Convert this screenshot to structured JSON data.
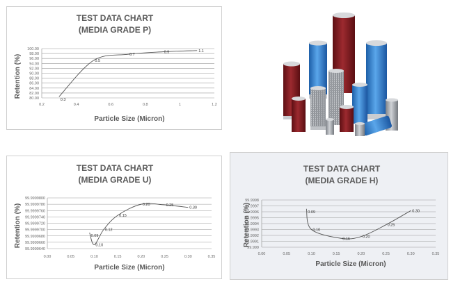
{
  "charts": {
    "p": {
      "title_line1": "TEST DATA CHART",
      "title_line2": "(MEDIA GRADE P)",
      "xlabel": "Particle Size (Micron)",
      "ylabel": "Retention (%)",
      "xticks": [
        "0.2",
        "0.4",
        "0.6",
        "0.8",
        "1",
        "1.2"
      ],
      "yticks": [
        "100.00",
        "98.00",
        "96.00",
        "94.00",
        "92.00",
        "90.00",
        "88.00",
        "86.00",
        "84.00",
        "82.00",
        "80.00"
      ]
    },
    "u": {
      "title_line1": "TEST DATA CHART",
      "title_line2": "(MEDIA GRADE U)",
      "xlabel": "Particle Size (Micron)",
      "ylabel": "Retention (%)",
      "xticks": [
        "0.00",
        "0.05",
        "0.10",
        "0.15",
        "0.20",
        "0.25",
        "0.30",
        "0.35"
      ],
      "yticks": [
        "99.9999800",
        "99.9999780",
        "99.9999760",
        "99.9999740",
        "99.9999720",
        "99.9999700",
        "99.9999680",
        "99.9999660",
        "99.9999640"
      ]
    },
    "h": {
      "title_line1": "TEST DATA CHART",
      "title_line2": "(MEDIA GRADE H)",
      "xlabel": "Particle Size (Micron)",
      "ylabel": "Retention (%)",
      "xticks": [
        "0.00",
        "0.05",
        "0.10",
        "0.15",
        "0.20",
        "0.25",
        "0.30",
        "0.35"
      ],
      "yticks": [
        "99.9998",
        "99.9997",
        "99.9996",
        "99.9995",
        "99.9994",
        "99.9993",
        "99.9992",
        "99.9991",
        "99.999"
      ]
    }
  },
  "chart_data": [
    {
      "type": "line",
      "title": "TEST DATA CHART (MEDIA GRADE P)",
      "xlabel": "Particle Size (Micron)",
      "ylabel": "Retention (%)",
      "xlim": [
        0.2,
        1.2
      ],
      "ylim": [
        80,
        100
      ],
      "grid": true,
      "x": [
        0.3,
        0.5,
        0.7,
        0.9,
        1.1
      ],
      "y": [
        80.5,
        95.2,
        97.7,
        98.7,
        99.2
      ],
      "point_labels": [
        "0.3",
        "0.5",
        "0.7",
        "0.9",
        "1.1"
      ]
    },
    {
      "type": "line",
      "title": "TEST DATA CHART (MEDIA GRADE U)",
      "xlabel": "Particle Size (Micron)",
      "ylabel": "Retention (%)",
      "xlim": [
        0,
        0.35
      ],
      "ylim": [
        99.999964,
        99.99998
      ],
      "grid": true,
      "x": [
        0.09,
        0.1,
        0.12,
        0.15,
        0.2,
        0.25,
        0.3
      ],
      "y": [
        99.999969,
        99.9999652,
        99.99997,
        99.9999745,
        99.999978,
        99.9999778,
        99.999977
      ],
      "point_labels": [
        "0.09",
        "0.10",
        "0.12",
        "0.15",
        "0.20",
        "0.25",
        "0.30"
      ]
    },
    {
      "type": "line",
      "title": "TEST DATA CHART (MEDIA GRADE H)",
      "xlabel": "Particle Size (Micron)",
      "ylabel": "Retention (%)",
      "xlim": [
        0,
        0.35
      ],
      "ylim": [
        99.999,
        99.9998
      ],
      "grid": true,
      "x": [
        0.09,
        0.1,
        0.16,
        0.2,
        0.25,
        0.3
      ],
      "y": [
        99.99965,
        99.9993,
        99.99915,
        99.99918,
        99.99938,
        99.99962
      ],
      "point_labels": [
        "0.09",
        "0.10",
        "0.16",
        "0.20",
        "0.25",
        "0.30"
      ]
    }
  ],
  "photo": {
    "colors": {
      "red": "#8e1d22",
      "blue": "#3a86d0",
      "steel": "#a9adb2",
      "cap": "#d7d9dc"
    }
  }
}
